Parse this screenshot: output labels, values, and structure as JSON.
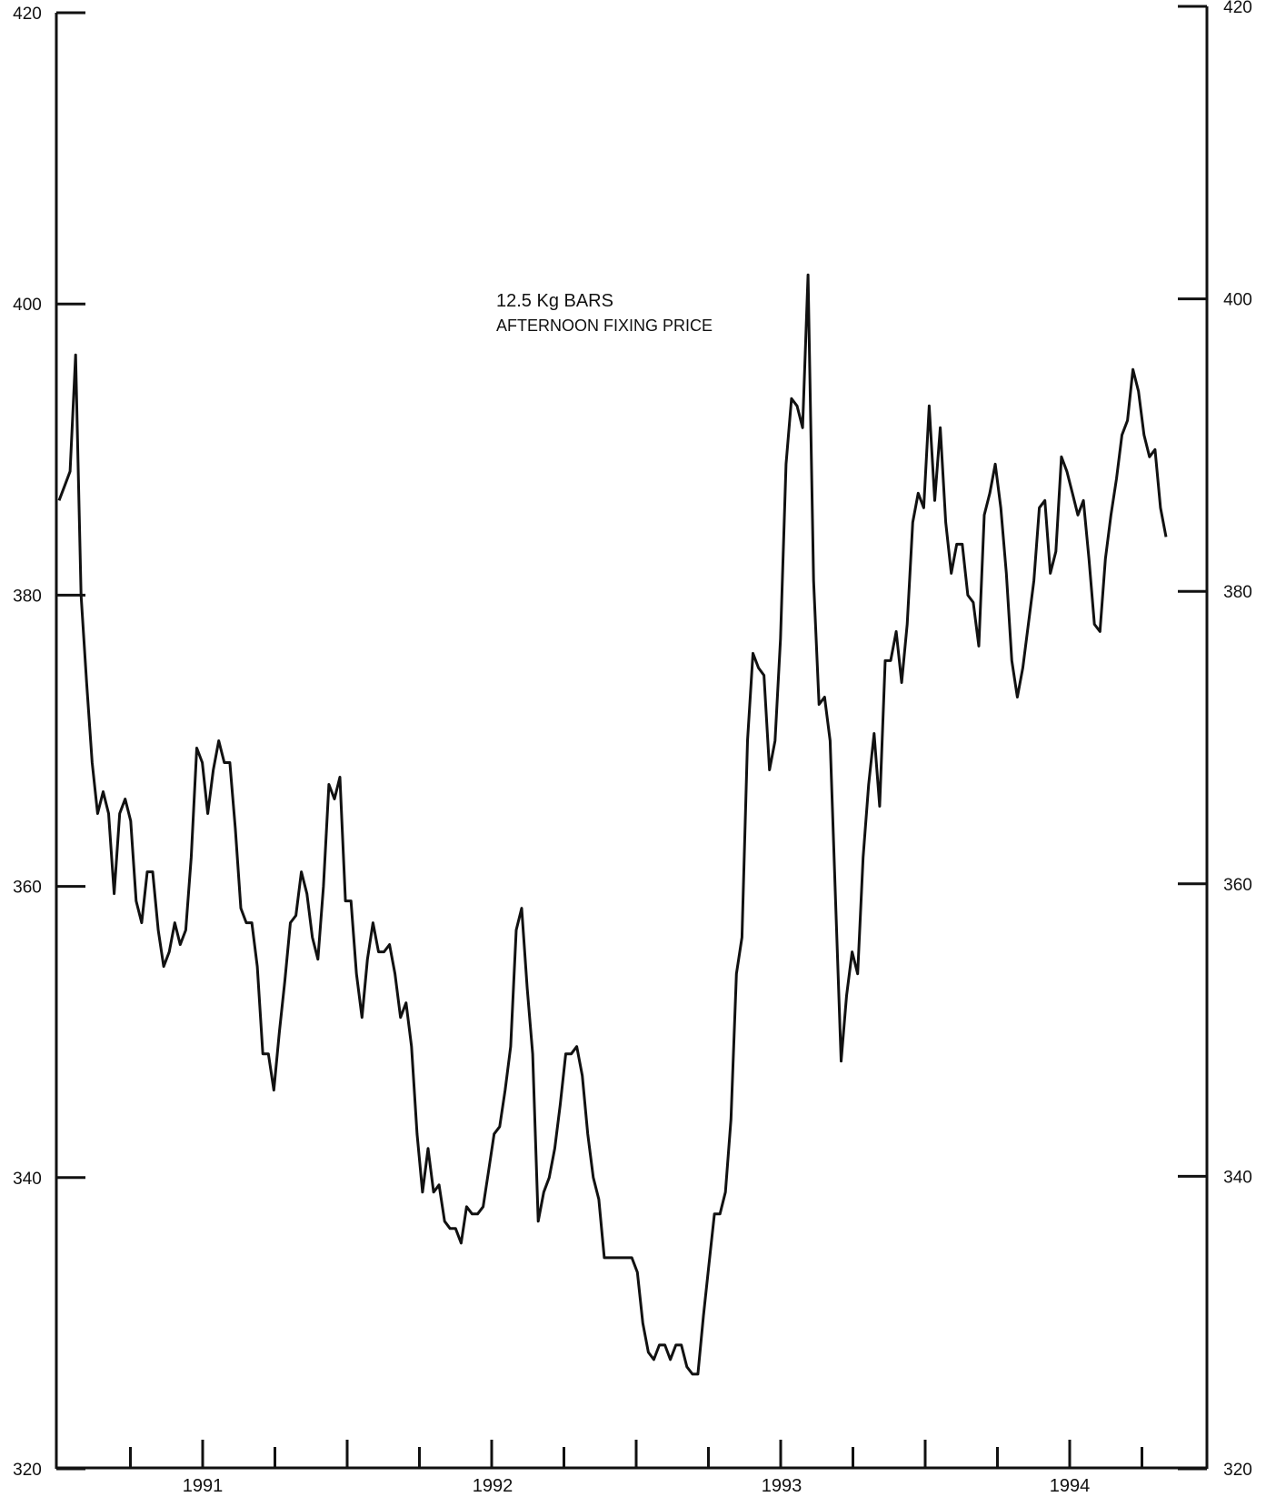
{
  "chart_data": {
    "type": "line",
    "title": "12.5 Kg BARS",
    "subtitle": "AFTERNOON FIXING PRICE",
    "xlabel": "",
    "ylabel": "",
    "ylim": [
      320,
      420
    ],
    "y_ticks": [
      "320",
      "340",
      "360",
      "380",
      "400",
      "420"
    ],
    "y_ticks_right": [
      "320",
      "340",
      "360",
      "380",
      "400",
      "420"
    ],
    "x_tick_labels": [
      "1991",
      "1992",
      "1993",
      "1994"
    ],
    "grid": false,
    "series": [
      {
        "values": [
          386.5,
          387.5,
          388.5,
          396.5,
          380.0,
          374.0,
          368.5,
          365.0,
          366.5,
          365.0,
          359.5,
          365.0,
          366.0,
          364.5,
          359.0,
          357.5,
          361.0,
          361.0,
          357.0,
          354.5,
          355.5,
          357.5,
          356.0,
          357.0,
          362.0,
          369.5,
          368.5,
          365.0,
          368.0,
          370.0,
          368.5,
          368.5,
          364.0,
          358.5,
          357.5,
          357.5,
          354.5,
          348.5,
          348.5,
          346.0,
          350.0,
          353.5,
          357.5,
          358.0,
          361.0,
          359.5,
          356.5,
          355.0,
          360.0,
          367.0,
          366.0,
          367.5,
          359.0,
          359.0,
          354.0,
          351.0,
          355.0,
          357.5,
          355.5,
          355.5,
          356.0,
          354.0,
          351.0,
          352.0,
          349.0,
          343.0,
          339.0,
          342.0,
          339.0,
          339.5,
          337.0,
          336.5,
          336.5,
          335.5,
          338.0,
          337.5,
          337.5,
          338.0,
          340.5,
          343.0,
          343.5,
          346.0,
          349.0,
          357.0,
          358.5,
          353.0,
          348.5,
          337.0,
          339.0,
          340.0,
          342.0,
          345.0,
          348.5,
          348.5,
          349.0,
          347.0,
          343.0,
          340.0,
          338.5,
          334.5,
          334.5,
          334.5,
          334.5,
          334.5,
          334.5,
          333.5,
          330.0,
          328.0,
          327.5,
          328.5,
          328.5,
          327.5,
          328.5,
          328.5,
          327.0,
          326.5,
          326.5,
          330.5,
          334.0,
          337.5,
          337.5,
          339.0,
          344.0,
          354.0,
          356.5,
          370.0,
          376.0,
          375.0,
          374.5,
          368.0,
          370.0,
          377.0,
          389.0,
          393.5,
          393.0,
          391.5,
          402.0,
          381.0,
          372.5,
          373.0,
          370.0,
          359.0,
          348.0,
          352.5,
          355.5,
          354.0,
          362.0,
          367.0,
          370.5,
          365.5,
          375.5,
          375.5,
          377.5,
          374.0,
          378.0,
          385.0,
          387.0,
          386.0,
          393.0,
          386.5,
          391.5,
          385.0,
          381.5,
          383.5,
          383.5,
          380.0,
          379.5,
          376.5,
          385.5,
          387.0,
          389.0,
          386.0,
          381.5,
          375.5,
          373.0,
          375.0,
          378.0,
          381.0,
          386.0,
          386.5,
          381.5,
          383.0,
          389.5,
          388.5,
          387.0,
          385.5,
          386.5,
          382.5,
          378.0,
          377.5,
          382.5,
          385.5,
          388.0,
          391.0,
          392.0,
          395.5,
          394.0,
          391.0,
          389.5,
          390.0,
          386.0,
          384.0
        ]
      }
    ]
  }
}
